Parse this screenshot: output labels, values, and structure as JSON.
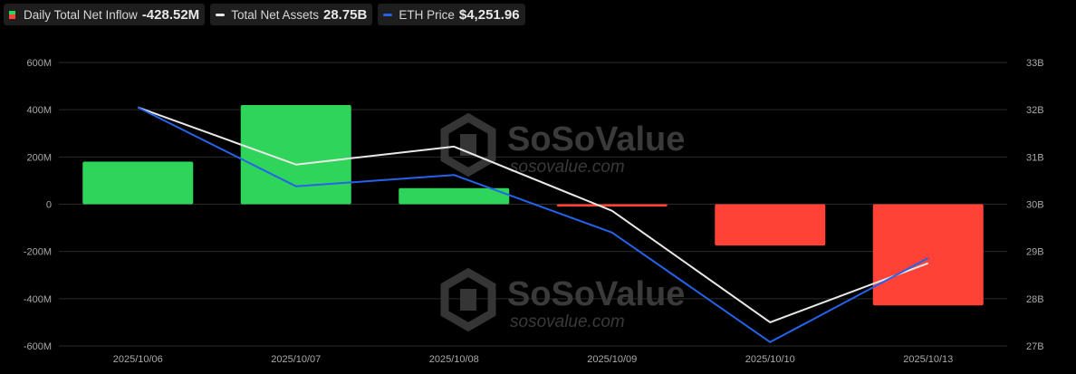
{
  "legend": {
    "inflow_label": "Daily Total Net Inflow",
    "inflow_value": "-428.52M",
    "assets_label": "Total Net Assets",
    "assets_value": "28.75B",
    "price_label": "ETH Price",
    "price_value": "$4,251.96"
  },
  "watermark": {
    "brand": "SoSoValue",
    "url": "sosovalue.com"
  },
  "colors": {
    "positive_bar": "#2fd45a",
    "negative_bar": "#ff4136",
    "assets_line": "#e8e8e8",
    "price_line": "#2563eb",
    "grid": "#2a2a2a",
    "background": "#000000"
  },
  "chart_data": {
    "type": "bar",
    "categories": [
      "2025/10/06",
      "2025/10/07",
      "2025/10/08",
      "2025/10/09",
      "2025/10/10",
      "2025/10/13"
    ],
    "left_axis": {
      "ticks": [
        600,
        400,
        200,
        0,
        -200,
        -400,
        -600
      ],
      "tick_labels": [
        "600M",
        "400M",
        "200M",
        "0",
        "-200M",
        "-400M",
        "-600M"
      ],
      "range": [
        -600,
        600
      ]
    },
    "right_axis": {
      "ticks": [
        33,
        32,
        31,
        30,
        29,
        28,
        27
      ],
      "tick_labels": [
        "33B",
        "32B",
        "31B",
        "30B",
        "29B",
        "28B",
        "27B"
      ],
      "range": [
        27,
        33
      ]
    },
    "series": [
      {
        "name": "Daily Total Net Inflow",
        "type": "bar",
        "axis": "left",
        "values": [
          180,
          420,
          68,
          -10,
          -175,
          -428.52
        ]
      },
      {
        "name": "Total Net Assets",
        "type": "line",
        "axis": "right",
        "values": [
          32.05,
          30.84,
          31.22,
          29.86,
          27.5,
          28.75
        ]
      },
      {
        "name": "ETH Price",
        "type": "line",
        "axis": "right",
        "values": [
          32.05,
          30.38,
          30.62,
          29.4,
          27.08,
          28.86
        ]
      }
    ],
    "grid": true,
    "legend_position": "top-left"
  }
}
